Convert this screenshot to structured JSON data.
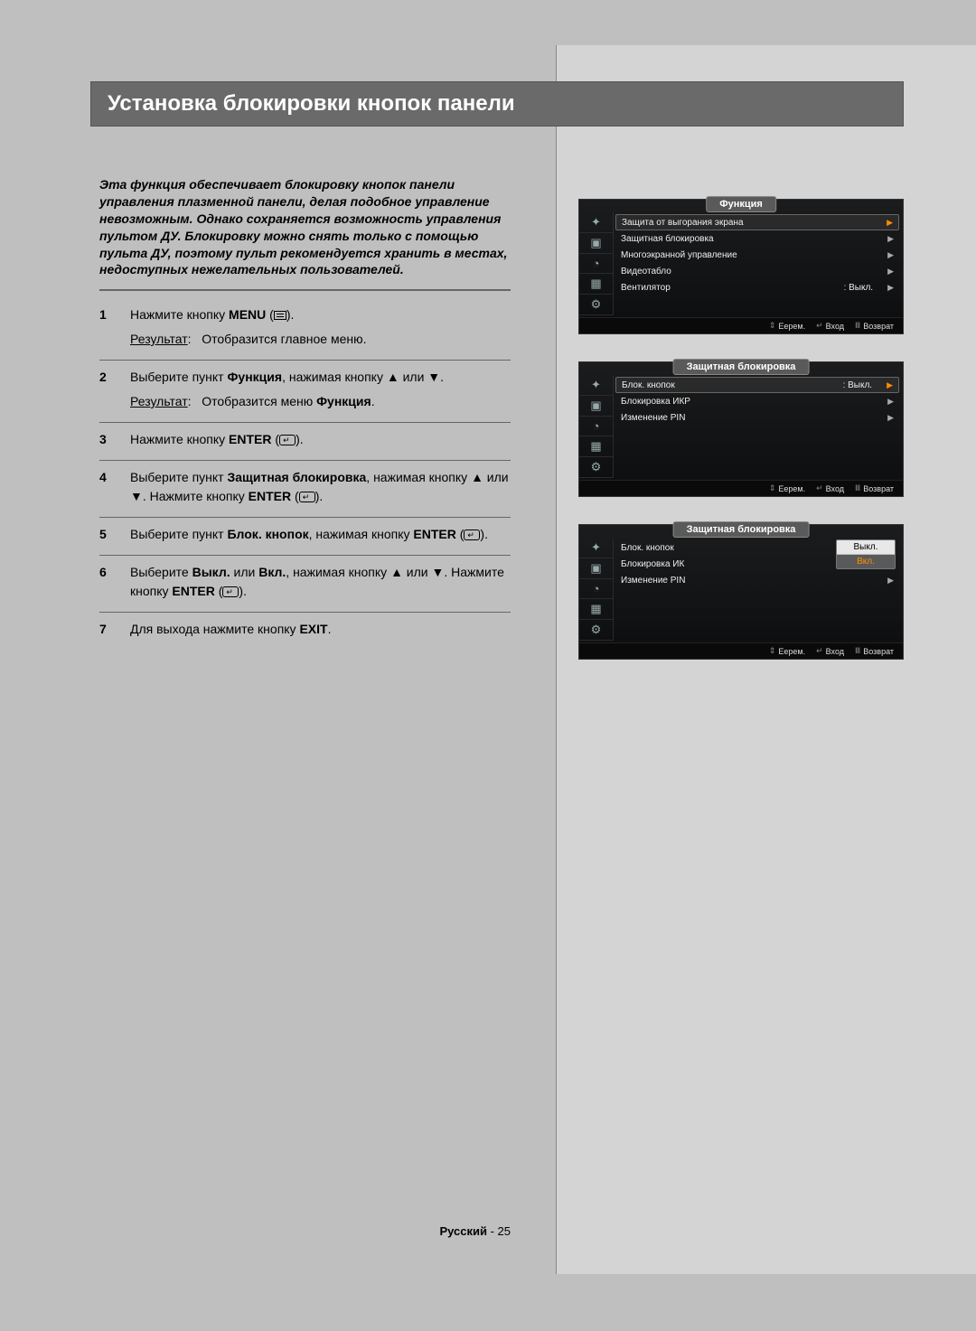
{
  "title": "Установка блокировки кнопок панели",
  "intro": "Эта функция обеспечивает блокировку кнопок панели управления плазменной панели, делая подобное управление невозможным. Однако сохраняется возможность управления пультом ДУ. Блокировку можно снять только с помощью пульта ДУ, поэтому пульт рекомендуется хранить в местах, недоступных нежелательных пользователей.",
  "result_label": "Результат",
  "steps": {
    "s1": {
      "n": "1",
      "a": "Нажмите кнопку ",
      "menu": "MENU",
      "b": " (",
      "c": ").",
      "r_text": "Отобразится главное меню."
    },
    "s2": {
      "n": "2",
      "a": "Выберите пункт ",
      "f": "Функция",
      "b": ", нажимая кнопку ",
      "c": " или ",
      "d": ".",
      "r_text_a": "Отобразится меню ",
      "r_text_b": "Функция",
      "r_text_c": "."
    },
    "s3": {
      "n": "3",
      "a": "Нажмите кнопку ",
      "enter": "ENTER",
      "b": " (",
      "c": ")."
    },
    "s4": {
      "n": "4",
      "a": "Выберите пункт ",
      "t": "Защитная блокировка",
      "b": ", нажимая кнопку ",
      "c": " или ",
      "d": ". Нажмите кнопку ",
      "enter": "ENTER",
      "e": " (",
      "f": ")."
    },
    "s5": {
      "n": "5",
      "a": "Выберите пункт ",
      "t": "Блок. кнопок",
      "b": ", нажимая кнопку ",
      "enter": "ENTER",
      "c": " (",
      "d": ")."
    },
    "s6": {
      "n": "6",
      "a": "Выберите ",
      "off": "Выкл.",
      "b": " или ",
      "on": "Вкл.",
      "c": ", нажимая кнопку ",
      "d": " или ",
      "e": ". Нажмите кнопку ",
      "enter": "ENTER",
      "f": " (",
      "g": ")."
    },
    "s7": {
      "n": "7",
      "a": "Для выхода нажмите кнопку ",
      "exit": "EXIT",
      "b": "."
    }
  },
  "osd": {
    "hints": {
      "move": "Eерем.",
      "enter": "Вход",
      "return": "Возврат"
    },
    "screen1": {
      "title": "Функция",
      "rows": [
        {
          "label": "Защита от выгорания экрана",
          "val": "",
          "active": true
        },
        {
          "label": "Защитная блокировка",
          "val": ""
        },
        {
          "label": "Многоэкранной управление",
          "val": ""
        },
        {
          "label": "Видеотабло",
          "val": ""
        },
        {
          "label": "Вентилятор",
          "val": ": Выкл."
        }
      ]
    },
    "screen2": {
      "title": "Защитная блокировка",
      "rows": [
        {
          "label": "Блок. кнопок",
          "val": ": Выкл.",
          "active": true
        },
        {
          "label": "Блокировка ИКР",
          "val": ""
        },
        {
          "label": "Изменение PIN",
          "val": ""
        }
      ]
    },
    "screen3": {
      "title": "Защитная блокировка",
      "rows": [
        {
          "label": "Блок. кнопок",
          "val": ":"
        },
        {
          "label": "Блокировка ИК",
          "val": ""
        },
        {
          "label": "Изменение PIN",
          "val": ""
        }
      ],
      "dropdown": {
        "off": "Выкл.",
        "on": "Вкл."
      }
    }
  },
  "footer": {
    "lang": "Русский",
    "sep": " - ",
    "page": "25"
  },
  "colors": {
    "page_bg": "#bfbfbf",
    "right_bg": "#d4d4d4",
    "title_bg": "#6a6a6a",
    "osd_bg_top": "#1a1c1e",
    "osd_bg_bot": "#0c0d0e",
    "accent": "#ff8c00"
  }
}
